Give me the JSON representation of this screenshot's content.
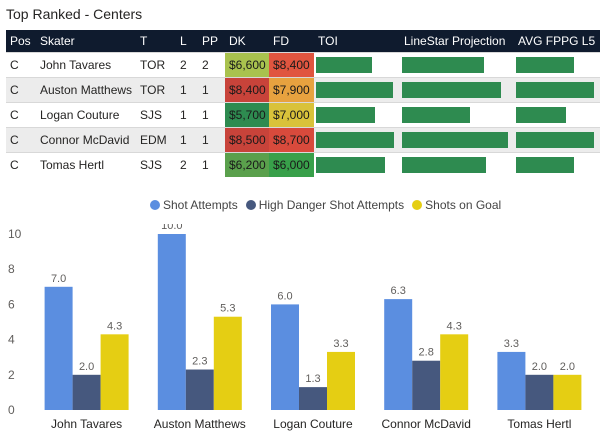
{
  "title": "Top Ranked - Centers",
  "table": {
    "headers": [
      "Pos",
      "Skater",
      "T",
      "L",
      "PP",
      "DK",
      "FD",
      "TOI",
      "LineStar Projection",
      "AVG FPPG L5"
    ],
    "rows": [
      {
        "pos": "C",
        "skater": "John Tavares",
        "team": "TOR",
        "line": "2",
        "pp": "2",
        "dk": "$6,600",
        "fd": "$8,400",
        "dk_color": "#a9c24e",
        "fd_color": "#e0553f",
        "toi": 0.7,
        "proj": 0.76,
        "fppg": 0.72
      },
      {
        "pos": "C",
        "skater": "Auston Matthews",
        "team": "TOR",
        "line": "1",
        "pp": "1",
        "dk": "$8,400",
        "fd": "$7,900",
        "dk_color": "#c8433a",
        "fd_color": "#e7a23f",
        "toi": 0.96,
        "proj": 0.92,
        "fppg": 0.98
      },
      {
        "pos": "C",
        "skater": "Logan Couture",
        "team": "SJS",
        "line": "1",
        "pp": "1",
        "dk": "$5,700",
        "fd": "$7,000",
        "dk_color": "#2e8b50",
        "fd_color": "#d9c23a",
        "toi": 0.74,
        "proj": 0.63,
        "fppg": 0.63
      },
      {
        "pos": "C",
        "skater": "Connor McDavid",
        "team": "EDM",
        "line": "1",
        "pp": "1",
        "dk": "$8,500",
        "fd": "$8,700",
        "dk_color": "#c8433a",
        "fd_color": "#d84a3c",
        "toi": 0.98,
        "proj": 0.98,
        "fppg": 0.97
      },
      {
        "pos": "C",
        "skater": "Tomas Hertl",
        "team": "SJS",
        "line": "2",
        "pp": "1",
        "dk": "$6,200",
        "fd": "$6,000",
        "dk_color": "#5aa04c",
        "fd_color": "#38a04a",
        "toi": 0.86,
        "proj": 0.78,
        "fppg": 0.73
      }
    ]
  },
  "legend": {
    "items": [
      {
        "label": "Shot Attempts",
        "color": "#5b8ee0"
      },
      {
        "label": "High Danger Shot Attempts",
        "color": "#46587e"
      },
      {
        "label": "Shots on Goal",
        "color": "#e5ce13"
      }
    ]
  },
  "chart_data": {
    "type": "bar",
    "categories": [
      "John Tavares",
      "Auston Matthews",
      "Logan Couture",
      "Connor McDavid",
      "Tomas Hertl"
    ],
    "series": [
      {
        "name": "Shot Attempts",
        "values": [
          7.0,
          10.0,
          6.0,
          6.3,
          3.3
        ],
        "color": "#5b8ee0"
      },
      {
        "name": "High Danger Shot Attempts",
        "values": [
          2.0,
          2.3,
          1.3,
          2.8,
          2.0
        ],
        "color": "#46587e"
      },
      {
        "name": "Shots on Goal",
        "values": [
          4.3,
          5.3,
          3.3,
          4.3,
          2.0
        ],
        "color": "#e5ce13"
      }
    ],
    "ylim": [
      0,
      10
    ],
    "yticks": [
      0,
      2,
      4,
      6,
      8,
      10
    ],
    "title": "",
    "xlabel": "",
    "ylabel": ""
  }
}
